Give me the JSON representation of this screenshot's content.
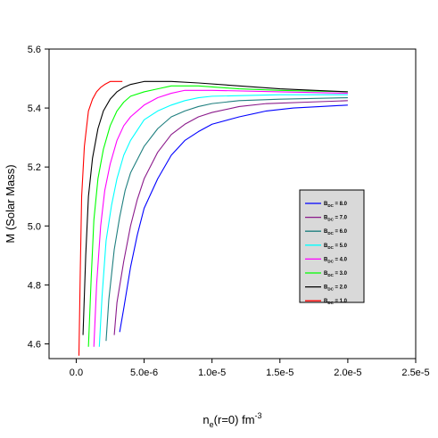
{
  "chart_data": {
    "type": "line",
    "title": "",
    "xlabel_main": "n",
    "xlabel_sub": "e",
    "xlabel_rest": "(r=0) fm",
    "xlabel_sup": "-3",
    "ylabel": "M (Solar Mass)",
    "xlim": [
      -2e-06,
      2.5e-05
    ],
    "ylim": [
      4.55,
      5.6
    ],
    "x_ticks": [
      0.0,
      5e-06,
      1e-05,
      1.5e-05,
      2e-05,
      2.5e-05
    ],
    "x_tick_labels": [
      "0.0",
      "5.0e-6",
      "1.0e-5",
      "1.5e-5",
      "2.0e-5",
      "2.5e-5"
    ],
    "y_ticks": [
      4.6,
      4.8,
      5.0,
      5.2,
      5.4,
      5.6
    ],
    "y_tick_labels": [
      "4.6",
      "4.8",
      "5.0",
      "5.2",
      "5.4",
      "5.6"
    ],
    "legend_placement": "right-center",
    "legend_prefix": "B",
    "legend_sub": "DC",
    "grid": false,
    "series": [
      {
        "name": "8.0",
        "label_value": "=  8.0",
        "color": "#0000ff",
        "points": [
          [
            3.2e-06,
            4.64
          ],
          [
            3.5e-06,
            4.72
          ],
          [
            4e-06,
            4.86
          ],
          [
            4.5e-06,
            4.97
          ],
          [
            5e-06,
            5.06
          ],
          [
            6e-06,
            5.16
          ],
          [
            7e-06,
            5.24
          ],
          [
            8e-06,
            5.29
          ],
          [
            9e-06,
            5.32
          ],
          [
            1e-05,
            5.345
          ],
          [
            1.2e-05,
            5.37
          ],
          [
            1.4e-05,
            5.39
          ],
          [
            1.6e-05,
            5.4
          ],
          [
            1.8e-05,
            5.405
          ],
          [
            2e-05,
            5.41
          ]
        ]
      },
      {
        "name": "7.0",
        "label_value": "=  7.0",
        "color": "#8b1a8b",
        "points": [
          [
            2.8e-06,
            4.63
          ],
          [
            3e-06,
            4.74
          ],
          [
            3.5e-06,
            4.88
          ],
          [
            4e-06,
            5.0
          ],
          [
            4.5e-06,
            5.09
          ],
          [
            5e-06,
            5.16
          ],
          [
            6e-06,
            5.25
          ],
          [
            7e-06,
            5.31
          ],
          [
            8e-06,
            5.345
          ],
          [
            9e-06,
            5.37
          ],
          [
            1e-05,
            5.385
          ],
          [
            1.2e-05,
            5.405
          ],
          [
            1.4e-05,
            5.415
          ],
          [
            1.7e-05,
            5.42
          ],
          [
            2e-05,
            5.425
          ]
        ]
      },
      {
        "name": "6.0",
        "label_value": "=  6.0",
        "color": "#1f7f7f",
        "points": [
          [
            2.2e-06,
            4.61
          ],
          [
            2.4e-06,
            4.75
          ],
          [
            2.8e-06,
            4.92
          ],
          [
            3.2e-06,
            5.03
          ],
          [
            3.6e-06,
            5.12
          ],
          [
            4e-06,
            5.18
          ],
          [
            5e-06,
            5.27
          ],
          [
            6e-06,
            5.33
          ],
          [
            7e-06,
            5.37
          ],
          [
            8e-06,
            5.39
          ],
          [
            9e-06,
            5.405
          ],
          [
            1e-05,
            5.415
          ],
          [
            1.2e-05,
            5.425
          ],
          [
            1.5e-05,
            5.43
          ],
          [
            2e-05,
            5.435
          ]
        ]
      },
      {
        "name": "5.0",
        "label_value": "=  5.0",
        "color": "#00ffff",
        "points": [
          [
            1.7e-06,
            4.59
          ],
          [
            1.9e-06,
            4.76
          ],
          [
            2.2e-06,
            4.95
          ],
          [
            2.6e-06,
            5.07
          ],
          [
            3e-06,
            5.16
          ],
          [
            3.5e-06,
            5.24
          ],
          [
            4e-06,
            5.29
          ],
          [
            5e-06,
            5.36
          ],
          [
            6e-06,
            5.39
          ],
          [
            7e-06,
            5.41
          ],
          [
            8e-06,
            5.425
          ],
          [
            9e-06,
            5.435
          ],
          [
            1e-05,
            5.44
          ],
          [
            1.5e-05,
            5.445
          ],
          [
            2e-05,
            5.445
          ]
        ]
      },
      {
        "name": "4.0",
        "label_value": "=  4.0",
        "color": "#ff00ff",
        "points": [
          [
            1.3e-06,
            4.59
          ],
          [
            1.5e-06,
            4.8
          ],
          [
            1.8e-06,
            5.0
          ],
          [
            2.1e-06,
            5.12
          ],
          [
            2.5e-06,
            5.21
          ],
          [
            3e-06,
            5.29
          ],
          [
            3.5e-06,
            5.34
          ],
          [
            4e-06,
            5.37
          ],
          [
            5e-06,
            5.41
          ],
          [
            6e-06,
            5.435
          ],
          [
            7e-06,
            5.45
          ],
          [
            8e-06,
            5.46
          ],
          [
            1e-05,
            5.46
          ],
          [
            1.5e-05,
            5.455
          ],
          [
            2e-05,
            5.45
          ]
        ]
      },
      {
        "name": "3.0",
        "label_value": "=  3.0",
        "color": "#00ff00",
        "points": [
          [
            9e-07,
            4.59
          ],
          [
            1.1e-06,
            4.82
          ],
          [
            1.3e-06,
            5.02
          ],
          [
            1.6e-06,
            5.16
          ],
          [
            2e-06,
            5.26
          ],
          [
            2.5e-06,
            5.34
          ],
          [
            3e-06,
            5.39
          ],
          [
            3.5e-06,
            5.42
          ],
          [
            4e-06,
            5.44
          ],
          [
            5e-06,
            5.455
          ],
          [
            6e-06,
            5.465
          ],
          [
            7e-06,
            5.475
          ],
          [
            9e-06,
            5.475
          ],
          [
            1.2e-05,
            5.465
          ],
          [
            1.5e-05,
            5.46
          ],
          [
            2e-05,
            5.455
          ]
        ]
      },
      {
        "name": "2.0",
        "label_value": "=  2.0",
        "color": "#000000",
        "points": [
          [
            5e-07,
            4.63
          ],
          [
            7e-07,
            4.9
          ],
          [
            9e-07,
            5.1
          ],
          [
            1.2e-06,
            5.23
          ],
          [
            1.6e-06,
            5.33
          ],
          [
            2e-06,
            5.39
          ],
          [
            2.5e-06,
            5.43
          ],
          [
            3e-06,
            5.455
          ],
          [
            3.5e-06,
            5.47
          ],
          [
            4e-06,
            5.48
          ],
          [
            5e-06,
            5.49
          ],
          [
            7e-06,
            5.49
          ],
          [
            9e-06,
            5.485
          ],
          [
            1.2e-05,
            5.475
          ],
          [
            1.5e-05,
            5.465
          ],
          [
            2e-05,
            5.455
          ]
        ]
      },
      {
        "name": "1.0",
        "label_value": "=  1.0",
        "color": "#ff0000",
        "points": [
          [
            2e-07,
            4.56
          ],
          [
            3e-07,
            4.85
          ],
          [
            4e-07,
            5.1
          ],
          [
            6e-07,
            5.27
          ],
          [
            9e-07,
            5.39
          ],
          [
            1.2e-06,
            5.43
          ],
          [
            1.5e-06,
            5.455
          ],
          [
            1.8e-06,
            5.47
          ],
          [
            2.1e-06,
            5.48
          ],
          [
            2.5e-06,
            5.49
          ],
          [
            3e-06,
            5.49
          ],
          [
            3.4e-06,
            5.49
          ]
        ]
      }
    ]
  }
}
